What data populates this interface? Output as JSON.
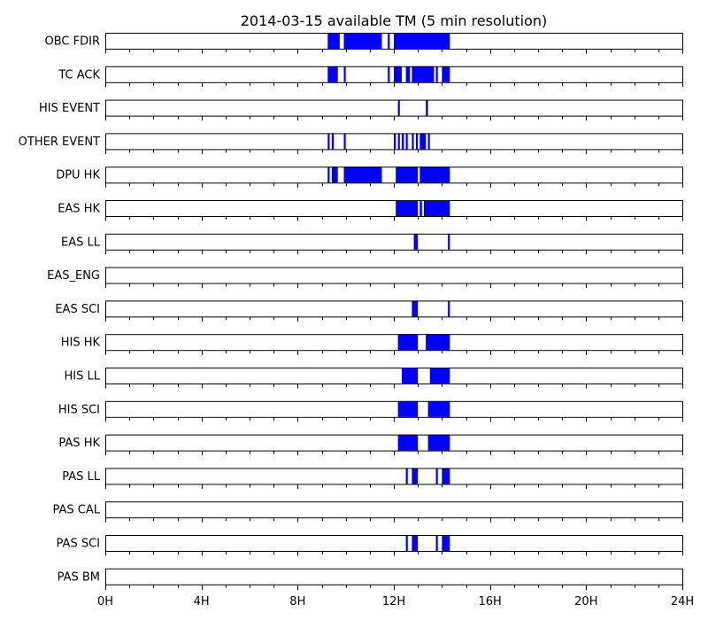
{
  "chart_data": {
    "type": "timeline",
    "title": "2014-03-15 available TM (5 min resolution)",
    "x_unit": "hour",
    "xlim": [
      0,
      24
    ],
    "x_major_ticks": [
      0,
      4,
      8,
      12,
      16,
      20,
      24
    ],
    "x_tick_labels": [
      "0H",
      "4H",
      "8H",
      "12H",
      "16H",
      "20H",
      "24H"
    ],
    "x_minor_tick_step": 1,
    "bar_color": "#0000ff",
    "rows": [
      {
        "label": "OBC FDIR",
        "intervals": [
          [
            9.25,
            9.75
          ],
          [
            9.92,
            11.5
          ],
          [
            11.75,
            11.83
          ],
          [
            12.0,
            14.33
          ]
        ]
      },
      {
        "label": "TC ACK",
        "intervals": [
          [
            9.25,
            9.67
          ],
          [
            9.92,
            10.0
          ],
          [
            11.75,
            11.83
          ],
          [
            12.0,
            12.33
          ],
          [
            12.5,
            12.67
          ],
          [
            12.75,
            13.67
          ],
          [
            13.75,
            13.83
          ],
          [
            14.0,
            14.33
          ]
        ]
      },
      {
        "label": "HIS EVENT",
        "intervals": [
          [
            12.17,
            12.25
          ],
          [
            13.33,
            13.42
          ]
        ]
      },
      {
        "label": "OTHER EVENT",
        "intervals": [
          [
            9.25,
            9.33
          ],
          [
            9.42,
            9.5
          ],
          [
            9.92,
            10.0
          ],
          [
            12.0,
            12.08
          ],
          [
            12.17,
            12.25
          ],
          [
            12.33,
            12.42
          ],
          [
            12.5,
            12.58
          ],
          [
            12.75,
            12.83
          ],
          [
            12.92,
            13.0
          ],
          [
            13.08,
            13.33
          ],
          [
            13.42,
            13.5
          ]
        ]
      },
      {
        "label": "DPU HK",
        "intervals": [
          [
            9.25,
            9.33
          ],
          [
            9.42,
            9.67
          ],
          [
            9.92,
            11.5
          ],
          [
            12.08,
            13.0
          ],
          [
            13.08,
            14.33
          ]
        ]
      },
      {
        "label": "EAS HK",
        "intervals": [
          [
            12.08,
            13.0
          ],
          [
            13.08,
            13.17
          ],
          [
            13.25,
            14.33
          ]
        ]
      },
      {
        "label": "EAS LL",
        "intervals": [
          [
            12.83,
            13.0
          ],
          [
            14.25,
            14.33
          ]
        ]
      },
      {
        "label": "EAS_ENG",
        "intervals": []
      },
      {
        "label": "EAS SCI",
        "intervals": [
          [
            12.75,
            13.0
          ],
          [
            14.25,
            14.33
          ]
        ]
      },
      {
        "label": "HIS HK",
        "intervals": [
          [
            12.17,
            13.0
          ],
          [
            13.33,
            14.33
          ]
        ]
      },
      {
        "label": "HIS LL",
        "intervals": [
          [
            12.33,
            13.0
          ],
          [
            13.5,
            14.33
          ]
        ]
      },
      {
        "label": "HIS SCI",
        "intervals": [
          [
            12.17,
            13.0
          ],
          [
            13.42,
            14.33
          ]
        ]
      },
      {
        "label": "PAS HK",
        "intervals": [
          [
            12.17,
            13.0
          ],
          [
            13.42,
            14.33
          ]
        ]
      },
      {
        "label": "PAS LL",
        "intervals": [
          [
            12.5,
            12.58
          ],
          [
            12.75,
            13.0
          ],
          [
            13.75,
            13.83
          ],
          [
            14.0,
            14.33
          ]
        ]
      },
      {
        "label": "PAS CAL",
        "intervals": []
      },
      {
        "label": "PAS SCI",
        "intervals": [
          [
            12.5,
            12.58
          ],
          [
            12.75,
            13.0
          ],
          [
            13.75,
            13.83
          ],
          [
            14.0,
            14.33
          ]
        ]
      },
      {
        "label": "PAS BM",
        "intervals": []
      }
    ]
  }
}
